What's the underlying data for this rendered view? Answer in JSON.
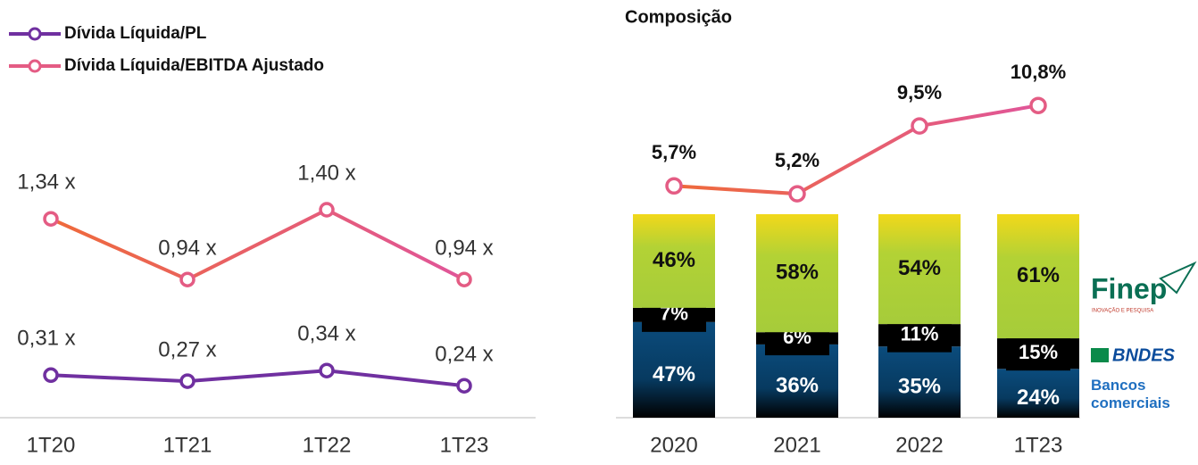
{
  "chart_data": [
    {
      "type": "line",
      "categories": [
        "1T20",
        "1T21",
        "1T22",
        "1T23"
      ],
      "ylim": [
        0,
        2
      ],
      "series": [
        {
          "name": "Dívida Líquida/PL",
          "color": "#7030a0",
          "values": [
            0.31,
            0.27,
            0.34,
            0.24
          ],
          "value_labels": [
            "0,31 x",
            "0,27 x",
            "0,34 x",
            "0,24 x"
          ]
        },
        {
          "name": "Dívida Líquida/EBITDA Ajustado",
          "color": "#e45c84",
          "values": [
            1.34,
            0.94,
            1.4,
            0.94
          ],
          "value_labels": [
            "1,34 x",
            "0,94 x",
            "1,40 x",
            "0,94 x"
          ]
        }
      ]
    },
    {
      "type": "stacked_bar",
      "title": "Composição",
      "categories": [
        "2020",
        "2021",
        "2022",
        "1T23"
      ],
      "ylim": [
        0,
        100
      ],
      "y2lim": [
        0,
        12
      ],
      "annotations": [
        "INOVAÇÃO E PESQUISA"
      ],
      "series": [
        {
          "name": "Bancos comerciais",
          "color": "#0b4c7d",
          "values": [
            47,
            36,
            35,
            24
          ],
          "value_labels": [
            "47%",
            "36%",
            "35%",
            "24%"
          ]
        },
        {
          "name": "BNDES",
          "color": "#000000",
          "values": [
            7,
            6,
            11,
            15
          ],
          "value_labels": [
            "7%",
            "6%",
            "11%",
            "15%"
          ]
        },
        {
          "name": "Finep",
          "color": "#b3d235",
          "values": [
            46,
            58,
            54,
            61
          ],
          "value_labels": [
            "46%",
            "58%",
            "54%",
            "61%"
          ]
        },
        {
          "type": "line",
          "axis": "y2",
          "color": "#e45c84",
          "values": [
            5.7,
            5.2,
            9.5,
            10.8
          ],
          "value_labels": [
            "5,7%",
            "5,2%",
            "9,5%",
            "10,8%"
          ]
        }
      ]
    }
  ]
}
